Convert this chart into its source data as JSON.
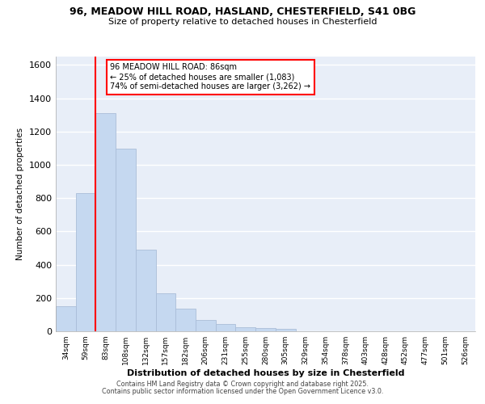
{
  "title_line1": "96, MEADOW HILL ROAD, HASLAND, CHESTERFIELD, S41 0BG",
  "title_line2": "Size of property relative to detached houses in Chesterfield",
  "xlabel": "Distribution of detached houses by size in Chesterfield",
  "ylabel": "Number of detached properties",
  "categories": [
    "34sqm",
    "59sqm",
    "83sqm",
    "108sqm",
    "132sqm",
    "157sqm",
    "182sqm",
    "206sqm",
    "231sqm",
    "255sqm",
    "280sqm",
    "305sqm",
    "329sqm",
    "354sqm",
    "378sqm",
    "403sqm",
    "428sqm",
    "452sqm",
    "477sqm",
    "501sqm",
    "526sqm"
  ],
  "values": [
    150,
    830,
    1310,
    1095,
    490,
    230,
    135,
    70,
    45,
    25,
    20,
    15,
    0,
    0,
    0,
    0,
    0,
    0,
    0,
    0,
    0
  ],
  "bar_color": "#c5d8f0",
  "bar_edge_color": "#aabdd8",
  "red_line_x": 2.5,
  "annotation_text": "96 MEADOW HILL ROAD: 86sqm\n← 25% of detached houses are smaller (1,083)\n74% of semi-detached houses are larger (3,262) →",
  "ylim": [
    0,
    1650
  ],
  "yticks": [
    0,
    200,
    400,
    600,
    800,
    1000,
    1200,
    1400,
    1600
  ],
  "background_color": "#ffffff",
  "plot_background": "#e8eef8",
  "grid_color": "#ffffff",
  "footer_line1": "Contains HM Land Registry data © Crown copyright and database right 2025.",
  "footer_line2": "Contains public sector information licensed under the Open Government Licence v3.0."
}
